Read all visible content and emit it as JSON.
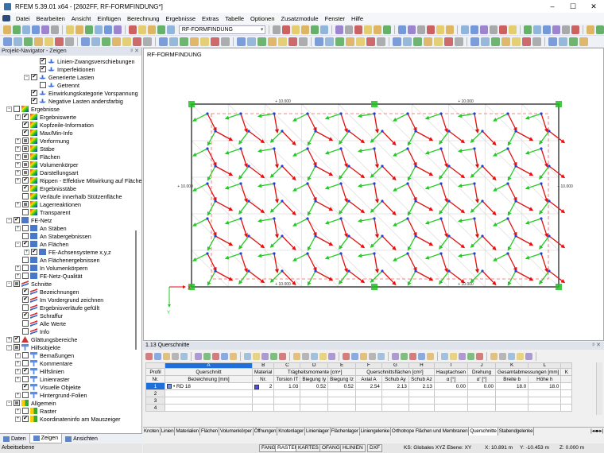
{
  "window": {
    "title": "RFEM 5.39.01 x64 - [2602FF, RF-FORMFINDUNG*]",
    "minimize": "–",
    "maximize": "☐",
    "close": "✕"
  },
  "menu": [
    "Datei",
    "Bearbeiten",
    "Ansicht",
    "Einfügen",
    "Berechnung",
    "Ergebnisse",
    "Extras",
    "Tabelle",
    "Optionen",
    "Zusatzmodule",
    "Fenster",
    "Hilfe"
  ],
  "toolbar": {
    "loadcase_combo": "RF-FORMFINDUNG"
  },
  "navigator": {
    "title": "Projekt-Navigator - Zeigen",
    "controls": "ᵖ ✕",
    "items": [
      {
        "label": "Linien-Zwangsverschiebungen",
        "level": 3,
        "check": "on",
        "icon": "load",
        "expander": ""
      },
      {
        "label": "Imperfektionen",
        "level": 3,
        "check": "on",
        "icon": "load",
        "expander": ""
      },
      {
        "label": "Generierte Lasten",
        "level": 2,
        "check": "on",
        "icon": "load",
        "expander": "-"
      },
      {
        "label": "Getrennt",
        "level": 3,
        "check": "off",
        "icon": "load",
        "expander": ""
      },
      {
        "label": "Einwirkungskategorie Vorspannung",
        "level": 2,
        "check": "on",
        "icon": "load",
        "expander": ""
      },
      {
        "label": "Negative Lasten andersfarbig",
        "level": 2,
        "check": "on",
        "icon": "load",
        "expander": ""
      },
      {
        "label": "Ergebnisse",
        "level": 0,
        "check": "off",
        "icon": "res",
        "expander": "-"
      },
      {
        "label": "Ergebniswerte",
        "level": 1,
        "check": "on",
        "icon": "res",
        "expander": "+"
      },
      {
        "label": "Kopfzeile-Information",
        "level": 1,
        "check": "on",
        "icon": "res",
        "expander": ""
      },
      {
        "label": "Max/Min-Info",
        "level": 1,
        "check": "on",
        "icon": "res",
        "expander": ""
      },
      {
        "label": "Verformung",
        "level": 1,
        "check": "partial",
        "icon": "res",
        "expander": "+"
      },
      {
        "label": "Stäbe",
        "level": 1,
        "check": "partial",
        "icon": "res",
        "expander": "+"
      },
      {
        "label": "Flächen",
        "level": 1,
        "check": "partial",
        "icon": "res",
        "expander": "+"
      },
      {
        "label": "Volumenkörper",
        "level": 1,
        "check": "partial",
        "icon": "res",
        "expander": "+"
      },
      {
        "label": "Darstellungsart",
        "level": 1,
        "check": "partial",
        "icon": "res",
        "expander": "+"
      },
      {
        "label": "Rippen - Effektive Mitwirkung auf Fläche/",
        "level": 1,
        "check": "on",
        "icon": "res",
        "expander": "+"
      },
      {
        "label": "Ergebnisstäbe",
        "level": 1,
        "check": "on",
        "icon": "res",
        "expander": ""
      },
      {
        "label": "Verläufe innerhalb Stützenfläche",
        "level": 1,
        "check": "off",
        "icon": "res",
        "expander": ""
      },
      {
        "label": "Lagerreaktionen",
        "level": 1,
        "check": "partial",
        "icon": "res",
        "expander": "+"
      },
      {
        "label": "Transparent",
        "level": 1,
        "check": "off",
        "icon": "res",
        "expander": ""
      },
      {
        "label": "FE-Netz",
        "level": 0,
        "check": "on",
        "icon": "mesh",
        "expander": "-"
      },
      {
        "label": "An Stäben",
        "level": 1,
        "check": "off",
        "icon": "mesh",
        "expander": "+"
      },
      {
        "label": "An Stabergebnissen",
        "level": 1,
        "check": "off",
        "icon": "mesh",
        "expander": ""
      },
      {
        "label": "An Flächen",
        "level": 1,
        "check": "on",
        "icon": "mesh",
        "expander": "-"
      },
      {
        "label": "FE-Achsensysteme x,y,z",
        "level": 2,
        "check": "on",
        "icon": "mesh",
        "expander": "+"
      },
      {
        "label": "An Flächenergebnissen",
        "level": 1,
        "check": "off",
        "icon": "mesh",
        "expander": ""
      },
      {
        "label": "In Volumenkörpern",
        "level": 1,
        "check": "off",
        "icon": "mesh",
        "expander": "+"
      },
      {
        "label": "FE-Netz-Qualität",
        "level": 1,
        "check": "off",
        "icon": "mesh",
        "expander": "+"
      },
      {
        "label": "Schnitte",
        "level": 0,
        "check": "partial",
        "icon": "sec",
        "expander": "-"
      },
      {
        "label": "Bezeichnungen",
        "level": 1,
        "check": "on",
        "icon": "sec",
        "expander": ""
      },
      {
        "label": "Im Vordergrund zeichnen",
        "level": 1,
        "check": "on",
        "icon": "sec",
        "expander": ""
      },
      {
        "label": "Ergebnisverläufe gefüllt",
        "level": 1,
        "check": "off",
        "icon": "sec",
        "expander": ""
      },
      {
        "label": "Schraffur",
        "level": 1,
        "check": "on",
        "icon": "sec",
        "expander": ""
      },
      {
        "label": "Alle Werte",
        "level": 1,
        "check": "off",
        "icon": "sec",
        "expander": ""
      },
      {
        "label": "Info",
        "level": 1,
        "check": "off",
        "icon": "sec",
        "expander": ""
      },
      {
        "label": "Glättungsbereiche",
        "level": 0,
        "check": "on",
        "icon": "smooth",
        "expander": "+"
      },
      {
        "label": "Hilfsobjekte",
        "level": 0,
        "check": "partial",
        "icon": "aux",
        "expander": "-"
      },
      {
        "label": "Bemaßungen",
        "level": 1,
        "check": "off",
        "icon": "aux",
        "expander": "+"
      },
      {
        "label": "Kommentare",
        "level": 1,
        "check": "off",
        "icon": "aux",
        "expander": "+"
      },
      {
        "label": "Hilfslinien",
        "level": 1,
        "check": "on",
        "icon": "aux",
        "expander": "+"
      },
      {
        "label": "Linienraster",
        "level": 1,
        "check": "off",
        "icon": "aux",
        "expander": "+"
      },
      {
        "label": "Visuelle Objekte",
        "level": 1,
        "check": "on",
        "icon": "aux",
        "expander": ""
      },
      {
        "label": "Hintergrund-Folien",
        "level": 1,
        "check": "off",
        "icon": "aux",
        "expander": "+"
      },
      {
        "label": "Allgemein",
        "level": 0,
        "check": "partial",
        "icon": "gen",
        "expander": "-"
      },
      {
        "label": "Raster",
        "level": 1,
        "check": "off",
        "icon": "gen",
        "expander": "+"
      },
      {
        "label": "Koordinateninfo am Mauszeiger",
        "level": 1,
        "check": "on",
        "icon": "gen",
        "expander": "+"
      }
    ],
    "tabs": [
      "Daten",
      "Zeigen",
      "Ansichten"
    ],
    "active_tab": "Zeigen"
  },
  "workplane_label": "Arbeitsebene",
  "viewport": {
    "title": "RF-FORMFINDUNG",
    "dimension_label": "10.000",
    "axis_x": "X",
    "axis_y": "Y",
    "colors": {
      "x_axis": "#e01010",
      "y_axis": "#22cc22",
      "z_axis": "#2040e0",
      "support": "#22c022"
    }
  },
  "table": {
    "title": "1.13 Querschnitte",
    "controls": "ᵖ ✕",
    "letters": [
      "",
      "A",
      "",
      "B",
      "C",
      "D",
      "E",
      "F",
      "G",
      "H",
      "I",
      "J",
      "K",
      "L",
      ""
    ],
    "header1": [
      "Profil",
      "Querschnitt",
      "",
      "Material",
      "Trägheitsmomente [cm⁴]",
      "",
      "",
      "Querschnittsflächen [cm²]",
      "",
      "",
      "Hauptachsen",
      "Drehung",
      "Gesamtabmessungen [mm]",
      "",
      "K"
    ],
    "header2": [
      "Nr.",
      "Bezeichnung [mm]",
      "",
      "Nr.",
      "Torsion IT",
      "Biegung Iy",
      "Biegung Iz",
      "Axial A",
      "Schub Ay",
      "Schub Az",
      "α [°]",
      "α' [°]",
      "Breite b",
      "Höhe h",
      ""
    ],
    "rows": [
      {
        "nr": "1",
        "name": "RD 18",
        "material": "2",
        "it": "1.03",
        "iy": "0.52",
        "iz": "0.52",
        "a": "2.54",
        "ay": "2.13",
        "az": "2.13",
        "alpha": "0.00",
        "alpha2": "0.00",
        "b": "18.0",
        "h": "18.0"
      },
      {
        "nr": "2"
      },
      {
        "nr": "3"
      },
      {
        "nr": "4"
      }
    ]
  },
  "bottom_tabs": [
    "Knoten",
    "Linien",
    "Materialien",
    "Flächen",
    "Volumenkörper",
    "Öffnungen",
    "Knotenlager",
    "Linienlager",
    "Flächenlager",
    "Liniengelenke",
    "Orthotrope Flächen und Membranen",
    "Querschnitte",
    "Stabendgelenke"
  ],
  "active_bottom_tab": "Querschnitte",
  "status": {
    "toggles": [
      "FANG",
      "RASTER",
      "KARTES",
      "OFANG",
      "HLINIEN",
      "DXF"
    ],
    "active_toggle": "RASTER",
    "cs": "KS: Globales XYZ  Ebene: XY",
    "x": "X: 10.891 m",
    "y": "Y: -10.453 m",
    "z": "Z: 0.000 m"
  }
}
